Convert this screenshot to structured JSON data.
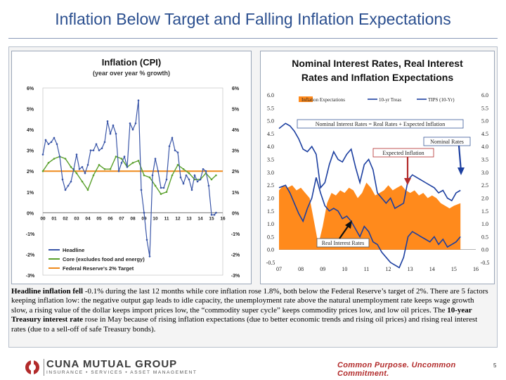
{
  "slide": {
    "title": "Inflation Below Target and Falling Inflation Expectations",
    "page_number": "5"
  },
  "left_chart_data": {
    "type": "line",
    "title": "Inflation (CPI)",
    "subtitle": "(year over year % growth)",
    "x_tick_labels": [
      "00",
      "01",
      "02",
      "03",
      "04",
      "05",
      "06",
      "07",
      "08",
      "09",
      "10",
      "11",
      "12",
      "13",
      "14",
      "15",
      "16"
    ],
    "y_tick_labels": [
      "6%",
      "5%",
      "4%",
      "3%",
      "2%",
      "1%",
      "0%",
      "-1%",
      "-2%",
      "-3%"
    ],
    "ylim": [
      -3,
      6
    ],
    "legend": [
      {
        "name": "Headline",
        "color": "#3a56a8"
      },
      {
        "name": "Core (excludes food and energy)",
        "color": "#5aa02c"
      },
      {
        "name": "Federal Reserve's 2% Target",
        "color": "#ef8a1c"
      }
    ],
    "series": {
      "headline": [
        [
          0,
          2.8
        ],
        [
          0.25,
          3.5
        ],
        [
          0.5,
          3.3
        ],
        [
          0.75,
          3.4
        ],
        [
          1,
          3.6
        ],
        [
          1.25,
          3.3
        ],
        [
          1.5,
          2.7
        ],
        [
          1.75,
          1.6
        ],
        [
          2,
          1.1
        ],
        [
          2.25,
          1.3
        ],
        [
          2.5,
          1.5
        ],
        [
          2.75,
          2.1
        ],
        [
          3,
          2.8
        ],
        [
          3.25,
          2.1
        ],
        [
          3.5,
          2.2
        ],
        [
          3.75,
          1.9
        ],
        [
          4,
          2.3
        ],
        [
          4.25,
          3.0
        ],
        [
          4.5,
          3.0
        ],
        [
          4.75,
          3.3
        ],
        [
          5,
          3.0
        ],
        [
          5.25,
          3.1
        ],
        [
          5.5,
          3.4
        ],
        [
          5.75,
          4.4
        ],
        [
          6,
          3.8
        ],
        [
          6.25,
          4.2
        ],
        [
          6.5,
          3.8
        ],
        [
          6.75,
          2.0
        ],
        [
          7,
          2.4
        ],
        [
          7.25,
          2.7
        ],
        [
          7.5,
          2.2
        ],
        [
          7.75,
          4.3
        ],
        [
          8,
          4.0
        ],
        [
          8.25,
          4.3
        ],
        [
          8.5,
          5.4
        ],
        [
          8.75,
          1.1
        ],
        [
          9,
          0.0
        ],
        [
          9.25,
          -1.3
        ],
        [
          9.5,
          -2.1
        ],
        [
          9.75,
          1.8
        ],
        [
          10,
          2.6
        ],
        [
          10.25,
          2.0
        ],
        [
          10.5,
          1.2
        ],
        [
          10.75,
          1.2
        ],
        [
          11,
          1.6
        ],
        [
          11.25,
          3.2
        ],
        [
          11.5,
          3.6
        ],
        [
          11.75,
          3.0
        ],
        [
          12,
          2.9
        ],
        [
          12.25,
          1.7
        ],
        [
          12.5,
          1.4
        ],
        [
          12.75,
          1.8
        ],
        [
          13,
          1.6
        ],
        [
          13.25,
          1.1
        ],
        [
          13.5,
          1.8
        ],
        [
          13.75,
          1.5
        ],
        [
          14,
          1.6
        ],
        [
          14.25,
          2.1
        ],
        [
          14.5,
          2.0
        ],
        [
          14.75,
          1.3
        ],
        [
          15,
          -0.1
        ],
        [
          15.25,
          -0.1
        ],
        [
          15.4,
          0.0
        ]
      ],
      "core": [
        [
          0,
          2.0
        ],
        [
          0.5,
          2.4
        ],
        [
          1,
          2.6
        ],
        [
          1.5,
          2.7
        ],
        [
          2,
          2.6
        ],
        [
          2.5,
          2.2
        ],
        [
          3,
          1.9
        ],
        [
          3.5,
          1.5
        ],
        [
          4,
          1.1
        ],
        [
          4.5,
          1.8
        ],
        [
          5,
          2.3
        ],
        [
          5.5,
          2.1
        ],
        [
          6,
          2.1
        ],
        [
          6.5,
          2.7
        ],
        [
          7,
          2.6
        ],
        [
          7.5,
          2.2
        ],
        [
          8,
          2.4
        ],
        [
          8.5,
          2.5
        ],
        [
          9,
          1.8
        ],
        [
          9.5,
          1.7
        ],
        [
          10,
          1.3
        ],
        [
          10.5,
          0.9
        ],
        [
          11,
          1.0
        ],
        [
          11.5,
          1.8
        ],
        [
          12,
          2.3
        ],
        [
          12.5,
          2.1
        ],
        [
          13,
          1.9
        ],
        [
          13.5,
          1.6
        ],
        [
          14,
          1.6
        ],
        [
          14.5,
          1.9
        ],
        [
          15,
          1.6
        ],
        [
          15.4,
          1.8
        ]
      ],
      "target": 2
    }
  },
  "right_chart_data": {
    "type": "area",
    "title": "Nominal Interest Rates, Real Interest Rates and Inflation Expectations",
    "x_tick_labels": [
      "07",
      "08",
      "09",
      "10",
      "11",
      "12",
      "13",
      "14",
      "15",
      "16"
    ],
    "y_tick_labels": [
      "6.0",
      "5.5",
      "5.0",
      "4.5",
      "4.0",
      "3.5",
      "3.0",
      "2.5",
      "2.0",
      "1.5",
      "1.0",
      "0.5",
      "0.0",
      "-0.5"
    ],
    "ylim": [
      -0.5,
      6.0
    ],
    "legend": [
      {
        "name": "Inflation Expectations",
        "color": "#ff8a1c"
      },
      {
        "name": "10-yr Treas",
        "color": "#1c3fa0"
      },
      {
        "name": "TIPS (10-Yr)",
        "color": "#1c3fa0"
      }
    ],
    "series": {
      "nominal": [
        [
          0,
          4.7
        ],
        [
          0.3,
          4.9
        ],
        [
          0.5,
          4.8
        ],
        [
          0.7,
          4.6
        ],
        [
          0.9,
          4.3
        ],
        [
          1.1,
          3.9
        ],
        [
          1.3,
          3.8
        ],
        [
          1.5,
          4.0
        ],
        [
          1.7,
          3.7
        ],
        [
          1.9,
          2.4
        ],
        [
          2.1,
          2.6
        ],
        [
          2.3,
          3.3
        ],
        [
          2.5,
          3.8
        ],
        [
          2.7,
          3.5
        ],
        [
          2.9,
          3.4
        ],
        [
          3.1,
          3.7
        ],
        [
          3.3,
          3.9
        ],
        [
          3.5,
          3.2
        ],
        [
          3.7,
          2.6
        ],
        [
          3.9,
          3.3
        ],
        [
          4.1,
          3.5
        ],
        [
          4.3,
          3.1
        ],
        [
          4.5,
          2.2
        ],
        [
          4.7,
          2.0
        ],
        [
          4.9,
          1.8
        ],
        [
          5.1,
          2.0
        ],
        [
          5.3,
          1.6
        ],
        [
          5.5,
          1.7
        ],
        [
          5.7,
          1.8
        ],
        [
          5.9,
          2.7
        ],
        [
          6.1,
          2.9
        ],
        [
          6.3,
          2.8
        ],
        [
          6.5,
          2.7
        ],
        [
          6.7,
          2.6
        ],
        [
          6.9,
          2.5
        ],
        [
          7.1,
          2.4
        ],
        [
          7.3,
          2.2
        ],
        [
          7.5,
          2.3
        ],
        [
          7.7,
          2.0
        ],
        [
          7.9,
          1.9
        ],
        [
          8.1,
          2.2
        ],
        [
          8.3,
          2.3
        ]
      ],
      "real": [
        [
          0,
          2.4
        ],
        [
          0.3,
          2.5
        ],
        [
          0.5,
          2.2
        ],
        [
          0.7,
          1.8
        ],
        [
          0.9,
          1.4
        ],
        [
          1.1,
          1.1
        ],
        [
          1.3,
          1.6
        ],
        [
          1.5,
          2.0
        ],
        [
          1.7,
          2.8
        ],
        [
          1.9,
          2.2
        ],
        [
          2.1,
          1.7
        ],
        [
          2.3,
          1.5
        ],
        [
          2.5,
          1.6
        ],
        [
          2.7,
          1.5
        ],
        [
          2.9,
          1.2
        ],
        [
          3.1,
          1.3
        ],
        [
          3.3,
          1.1
        ],
        [
          3.5,
          0.8
        ],
        [
          3.7,
          0.5
        ],
        [
          3.9,
          0.9
        ],
        [
          4.1,
          0.7
        ],
        [
          4.3,
          0.3
        ],
        [
          4.5,
          0.2
        ],
        [
          4.7,
          -0.1
        ],
        [
          4.9,
          -0.3
        ],
        [
          5.1,
          -0.5
        ],
        [
          5.3,
          -0.6
        ],
        [
          5.5,
          -0.7
        ],
        [
          5.7,
          -0.3
        ],
        [
          5.9,
          0.5
        ],
        [
          6.1,
          0.7
        ],
        [
          6.3,
          0.6
        ],
        [
          6.5,
          0.5
        ],
        [
          6.7,
          0.4
        ],
        [
          6.9,
          0.3
        ],
        [
          7.1,
          0.5
        ],
        [
          7.3,
          0.2
        ],
        [
          7.5,
          0.4
        ],
        [
          7.7,
          0.1
        ],
        [
          7.9,
          0.2
        ],
        [
          8.1,
          0.3
        ],
        [
          8.3,
          0.5
        ]
      ],
      "expectations": [
        [
          0,
          2.3
        ],
        [
          0.2,
          2.5
        ],
        [
          0.4,
          2.4
        ],
        [
          0.6,
          2.5
        ],
        [
          0.8,
          2.3
        ],
        [
          1.0,
          2.4
        ],
        [
          1.2,
          2.2
        ],
        [
          1.4,
          2.0
        ],
        [
          1.6,
          1.1
        ],
        [
          1.8,
          0.2
        ],
        [
          2.0,
          0.9
        ],
        [
          2.2,
          1.8
        ],
        [
          2.4,
          2.2
        ],
        [
          2.6,
          2.1
        ],
        [
          2.8,
          2.3
        ],
        [
          3.0,
          2.2
        ],
        [
          3.2,
          2.4
        ],
        [
          3.4,
          2.3
        ],
        [
          3.6,
          2.0
        ],
        [
          3.8,
          2.2
        ],
        [
          4.0,
          2.6
        ],
        [
          4.2,
          2.4
        ],
        [
          4.4,
          2.1
        ],
        [
          4.6,
          2.2
        ],
        [
          4.8,
          2.3
        ],
        [
          5.0,
          2.5
        ],
        [
          5.2,
          2.3
        ],
        [
          5.4,
          2.4
        ],
        [
          5.6,
          2.5
        ],
        [
          5.8,
          2.3
        ],
        [
          6.0,
          2.2
        ],
        [
          6.2,
          2.3
        ],
        [
          6.4,
          2.1
        ],
        [
          6.6,
          2.2
        ],
        [
          6.8,
          2.0
        ],
        [
          7.0,
          2.1
        ],
        [
          7.2,
          2.0
        ],
        [
          7.4,
          1.8
        ],
        [
          7.6,
          1.7
        ],
        [
          7.8,
          1.6
        ],
        [
          8.0,
          1.7
        ],
        [
          8.3,
          1.8
        ]
      ]
    },
    "annotations": {
      "formula": "Nominal Interest Rates = Real Rates + Expected Inflation",
      "nominal": "Nominal Rates",
      "expected": "Expected Inflation",
      "real": "Real Interest Rates"
    }
  },
  "body_text": {
    "p1_bold": "Headline inflation fell",
    "p1_rest": " -0.1% during the last 12 months while core inflation rose 1.8%, both below the Federal Reserve’s target of 2%. There are 5 factors keeping inflation low: the negative output gap leads to idle capacity, the unemployment rate above the natural unemployment rate keeps wage growth slow, a rising value of the dollar keeps import prices low, the “commodity super cycle” keeps commodity prices low, and low oil prices.  The ",
    "p2_bold": "10-year Treasury interest rate",
    "p2_rest": " rose in May because of rising inflation expectations (due to better economic trends and rising oil prices) and rising real interest rates (due to a sell-off of safe Treasury bonds)."
  },
  "footer": {
    "company": "CUNA MUTUAL GROUP",
    "company_sub": "INSURANCE • SERVICES • ASSET MANAGEMENT",
    "tagline": "Common Purpose. Uncommon Commitment.",
    "brand_color": "#b22a2a"
  }
}
